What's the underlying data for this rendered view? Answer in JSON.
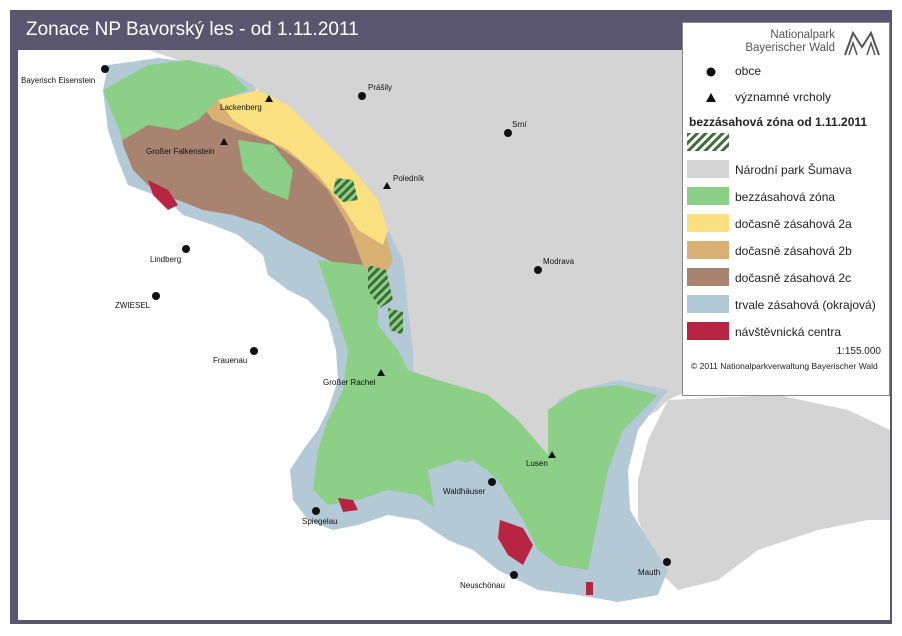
{
  "title": "Zonace NP Bavorský les - od 1.11.2011",
  "places": [
    {
      "id": "bayerisch-eisenstein",
      "label": "Bayerisch Eisenstein",
      "kind": "obec"
    },
    {
      "id": "prasily",
      "label": "Prášily",
      "kind": "obec"
    },
    {
      "id": "lackenberg",
      "label": "Lackenberg",
      "kind": "vrchol"
    },
    {
      "id": "srni",
      "label": "Srní",
      "kind": "obec"
    },
    {
      "id": "grosser-falkenstein",
      "label": "Großer Falkenstein",
      "kind": "vrchol"
    },
    {
      "id": "polednik",
      "label": "Poledník",
      "kind": "vrchol"
    },
    {
      "id": "lindberg",
      "label": "Lindberg",
      "kind": "obec"
    },
    {
      "id": "modrava",
      "label": "Modrava",
      "kind": "obec"
    },
    {
      "id": "zwiesel",
      "label": "ZWIESEL",
      "kind": "obec"
    },
    {
      "id": "frauenau",
      "label": "Frauenau",
      "kind": "obec"
    },
    {
      "id": "grosser-rachel",
      "label": "Großer Rachel",
      "kind": "vrchol"
    },
    {
      "id": "lusen",
      "label": "Lusen",
      "kind": "vrchol"
    },
    {
      "id": "waldhauser",
      "label": "Waldhäuser",
      "kind": "obec"
    },
    {
      "id": "spiegelau",
      "label": "Spiegelau",
      "kind": "obec"
    },
    {
      "id": "neuschonau",
      "label": "Neuschönau",
      "kind": "obec"
    },
    {
      "id": "mauth",
      "label": "Mauth",
      "kind": "obec"
    }
  ],
  "legend": {
    "logo_line1": "Nationalpark",
    "logo_line2": "Bayerischer Wald",
    "obce": "obce",
    "vrcholy": "významné vrcholy",
    "heading": "bezzásahová zóna od 1.11.2011",
    "items": [
      {
        "label": "Národní park Šumava",
        "color": "#d4d4d4"
      },
      {
        "label": "bezzásahová zóna",
        "color": "#8ccf86"
      },
      {
        "label": "dočasně zásahová 2a",
        "color": "#fbe07f"
      },
      {
        "label": "dočasně zásahová 2b",
        "color": "#d8b074"
      },
      {
        "label": "dočasně zásahová 2c",
        "color": "#a88470"
      },
      {
        "label": "trvale zásahová (okrajová)",
        "color": "#b4c9d6"
      },
      {
        "label": "návštěvnická centra",
        "color": "#b72542"
      }
    ],
    "scale": "1:155.000",
    "copyright": "© 2011 Nationalparkverwaltung Bayerischer Wald"
  }
}
